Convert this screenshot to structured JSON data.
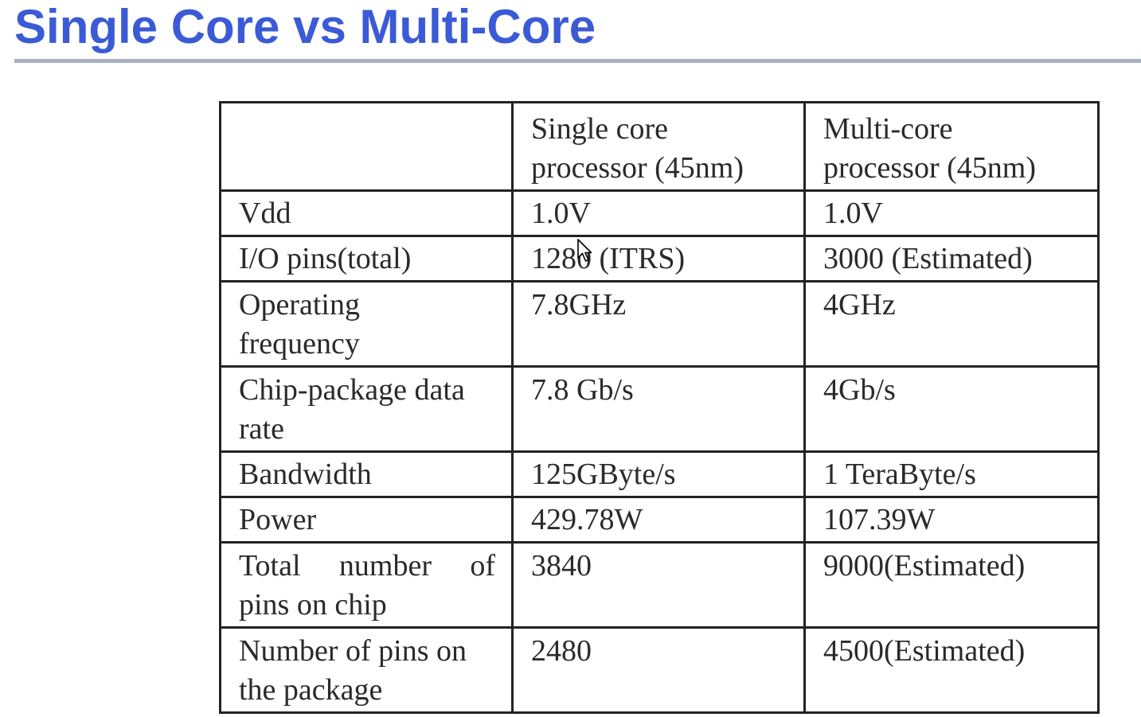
{
  "slide": {
    "title": "Single Core vs Multi-Core"
  },
  "table": {
    "header": {
      "blank": "",
      "single_line1": "Single core",
      "single_line2": "processor (45nm)",
      "multi_line1": "Multi-core",
      "multi_line2": "processor (45nm)"
    },
    "rows": [
      {
        "label_line1": "Vdd",
        "label_line2": "",
        "single": "1.0V",
        "multi": "1.0V"
      },
      {
        "label_line1": "I/O pins(total)",
        "label_line2": "",
        "single": "1280 (ITRS)",
        "multi": "3000 (Estimated)"
      },
      {
        "label_line1": "Operating",
        "label_line2": "frequency",
        "single": "7.8GHz",
        "multi": "4GHz"
      },
      {
        "label_line1": "Chip-package data",
        "label_line2": "rate",
        "single": "7.8 Gb/s",
        "multi": "4Gb/s"
      },
      {
        "label_line1": "Bandwidth",
        "label_line2": "",
        "single": "125GByte/s",
        "multi": "1 TeraByte/s"
      },
      {
        "label_line1": "Power",
        "label_line2": "",
        "single": "429.78W",
        "multi": "107.39W"
      },
      {
        "label_line1": "Total number of",
        "label_line2": "pins on chip",
        "single": "3840",
        "multi": "9000(Estimated)"
      },
      {
        "label_line1": "Number of pins on",
        "label_line2": "the package",
        "single": "2480",
        "multi": "4500(Estimated)"
      }
    ]
  },
  "cursor": {
    "icon": "mouse-pointer-icon"
  }
}
